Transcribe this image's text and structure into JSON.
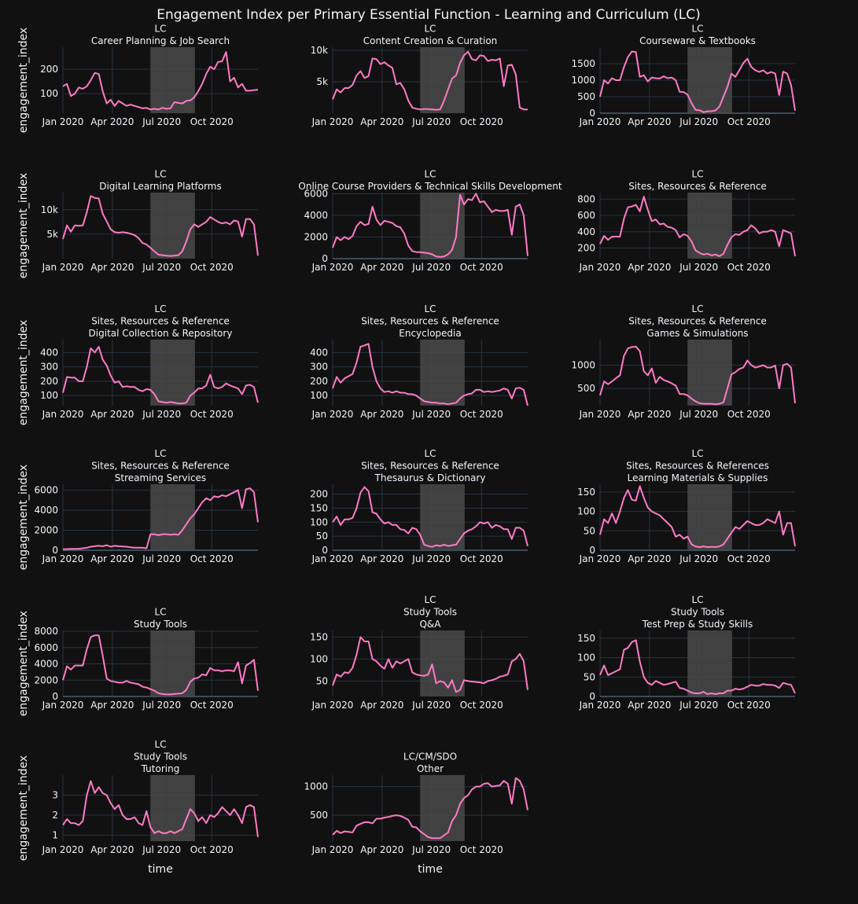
{
  "title": "Engagement Index per Primary Essential Function - Learning and Curriculum (LC)",
  "xaxis_label": "time",
  "yaxis_label": "engagement_index",
  "x_ticks": [
    "Jan 2020",
    "Apr 2020",
    "Jul 2020",
    "Oct 2020"
  ],
  "colors": {
    "background": "#111111",
    "line": "#ff7ac6",
    "grid": "#283442",
    "zeroline": "#3b4b5c",
    "shade": "#4a4a4a",
    "text": "#f2f5fa"
  },
  "shaded_period": {
    "start": "2020-06-10",
    "end": "2020-08-31"
  },
  "chart_data": [
    {
      "type": "line",
      "row": 1,
      "col": 1,
      "subtitle": [
        "LC",
        "Career Planning & Job Search"
      ],
      "ylim": [
        20,
        290
      ],
      "yticks": [
        {
          "v": 100,
          "t": "100"
        },
        {
          "v": 200,
          "t": "200"
        }
      ],
      "values": [
        130,
        140,
        90,
        100,
        125,
        120,
        130,
        155,
        185,
        180,
        110,
        60,
        75,
        50,
        70,
        60,
        50,
        55,
        50,
        45,
        40,
        42,
        35,
        38,
        35,
        42,
        38,
        40,
        65,
        62,
        60,
        70,
        72,
        85,
        110,
        140,
        180,
        210,
        200,
        230,
        232,
        270,
        150,
        165,
        125,
        140,
        112,
        112,
        114,
        116
      ]
    },
    {
      "type": "line",
      "row": 1,
      "col": 2,
      "subtitle": [
        "LC",
        "Content Creation & Curation"
      ],
      "ylim": [
        0,
        10500
      ],
      "yticks": [
        {
          "v": 5000,
          "t": "5k"
        },
        {
          "v": 10000,
          "t": "10k"
        }
      ],
      "values": [
        2200,
        3800,
        3300,
        4000,
        4000,
        4500,
        6000,
        6700,
        5600,
        5900,
        8700,
        8600,
        7800,
        8100,
        7600,
        7200,
        4600,
        4800,
        3800,
        2000,
        900,
        700,
        600,
        650,
        650,
        600,
        550,
        600,
        2000,
        3800,
        5500,
        6000,
        8000,
        9200,
        9800,
        8600,
        8400,
        9200,
        9100,
        8300,
        8500,
        8400,
        8700,
        4300,
        7600,
        7700,
        6200,
        900,
        600,
        600
      ]
    },
    {
      "type": "line",
      "row": 1,
      "col": 3,
      "subtitle": [
        "LC",
        "Courseware & Textbooks"
      ],
      "ylim": [
        0,
        2000
      ],
      "yticks": [
        {
          "v": 0,
          "t": "0"
        },
        {
          "v": 500,
          "t": "500"
        },
        {
          "v": 1000,
          "t": "1000"
        },
        {
          "v": 1500,
          "t": "1500"
        }
      ],
      "values": [
        500,
        1000,
        900,
        1060,
        1000,
        1000,
        1400,
        1700,
        1870,
        1850,
        1100,
        1150,
        960,
        1080,
        1060,
        1050,
        1120,
        1060,
        1080,
        1000,
        650,
        640,
        560,
        300,
        100,
        90,
        30,
        60,
        60,
        80,
        200,
        500,
        800,
        1200,
        1100,
        1300,
        1520,
        1650,
        1400,
        1300,
        1250,
        1300,
        1200,
        1250,
        1200,
        550,
        1260,
        1200,
        850,
        80
      ]
    },
    {
      "type": "line",
      "row": 2,
      "col": 1,
      "subtitle": [
        "LC",
        "Digital Learning Platforms"
      ],
      "ylim": [
        0,
        13500
      ],
      "yticks": [
        {
          "v": 5000,
          "t": "5k"
        },
        {
          "v": 10000,
          "t": "10k"
        }
      ],
      "values": [
        4000,
        6800,
        5500,
        6800,
        6700,
        6800,
        9500,
        12800,
        12400,
        12300,
        9200,
        7600,
        6000,
        5400,
        5300,
        5400,
        5300,
        5100,
        4800,
        4200,
        3200,
        2900,
        2200,
        1500,
        800,
        700,
        600,
        550,
        600,
        700,
        1500,
        3500,
        6000,
        7000,
        6500,
        7000,
        7500,
        8500,
        8000,
        7500,
        7200,
        7400,
        7000,
        7800,
        7600,
        4500,
        8100,
        8100,
        7000,
        600
      ]
    },
    {
      "type": "line",
      "row": 2,
      "col": 2,
      "subtitle": [
        "LC",
        "Online Course Providers & Technical Skills Development"
      ],
      "ylim": [
        0,
        6100
      ],
      "yticks": [
        {
          "v": 0,
          "t": "0"
        },
        {
          "v": 2000,
          "t": "2000"
        },
        {
          "v": 4000,
          "t": "4000"
        },
        {
          "v": 6000,
          "t": "6000"
        }
      ],
      "values": [
        1000,
        2000,
        1700,
        2000,
        1800,
        2100,
        3000,
        3400,
        3100,
        3200,
        4800,
        3600,
        3100,
        3500,
        3400,
        3300,
        3000,
        2900,
        2300,
        1200,
        700,
        600,
        600,
        550,
        500,
        400,
        200,
        150,
        200,
        400,
        800,
        2000,
        5900,
        5000,
        5500,
        5400,
        6000,
        5200,
        5300,
        4800,
        4300,
        4500,
        4400,
        4400,
        4500,
        2200,
        4800,
        5000,
        4000,
        250
      ]
    },
    {
      "type": "line",
      "row": 2,
      "col": 3,
      "subtitle": [
        "LC",
        "Sites, Resources & Reference"
      ],
      "ylim": [
        70,
        880
      ],
      "yticks": [
        {
          "v": 200,
          "t": "200"
        },
        {
          "v": 400,
          "t": "400"
        },
        {
          "v": 600,
          "t": "600"
        },
        {
          "v": 800,
          "t": "800"
        }
      ],
      "values": [
        250,
        350,
        300,
        340,
        340,
        340,
        560,
        700,
        710,
        730,
        650,
        830,
        670,
        530,
        550,
        490,
        500,
        460,
        450,
        420,
        330,
        370,
        350,
        280,
        170,
        140,
        120,
        130,
        110,
        120,
        100,
        130,
        240,
        330,
        370,
        360,
        400,
        420,
        480,
        440,
        380,
        400,
        400,
        420,
        400,
        220,
        420,
        400,
        380,
        100
      ]
    },
    {
      "type": "line",
      "row": 3,
      "col": 1,
      "subtitle": [
        "LC",
        "Sites, Resources & Reference",
        "Digital Collection & Repository"
      ],
      "ylim": [
        30,
        490
      ],
      "yticks": [
        {
          "v": 100,
          "t": "100"
        },
        {
          "v": 200,
          "t": "200"
        },
        {
          "v": 300,
          "t": "300"
        },
        {
          "v": 400,
          "t": "400"
        }
      ],
      "values": [
        120,
        230,
        225,
        225,
        200,
        200,
        300,
        430,
        400,
        440,
        350,
        310,
        240,
        190,
        200,
        160,
        165,
        160,
        160,
        140,
        130,
        145,
        140,
        110,
        60,
        55,
        50,
        55,
        50,
        45,
        45,
        50,
        100,
        120,
        150,
        150,
        170,
        245,
        160,
        150,
        160,
        185,
        170,
        160,
        150,
        110,
        170,
        175,
        160,
        50
      ]
    },
    {
      "type": "line",
      "row": 3,
      "col": 2,
      "subtitle": [
        "LC",
        "Sites, Resources & Reference",
        "Encyclopedia"
      ],
      "ylim": [
        30,
        490
      ],
      "yticks": [
        {
          "v": 100,
          "t": "100"
        },
        {
          "v": 200,
          "t": "200"
        },
        {
          "v": 300,
          "t": "300"
        },
        {
          "v": 400,
          "t": "400"
        }
      ],
      "values": [
        150,
        230,
        190,
        220,
        235,
        250,
        330,
        440,
        450,
        460,
        300,
        200,
        150,
        125,
        130,
        120,
        130,
        120,
        120,
        110,
        110,
        100,
        80,
        60,
        55,
        50,
        50,
        45,
        45,
        40,
        45,
        50,
        80,
        100,
        110,
        115,
        140,
        140,
        125,
        130,
        125,
        130,
        135,
        150,
        140,
        80,
        150,
        155,
        140,
        30
      ]
    },
    {
      "type": "line",
      "row": 3,
      "col": 3,
      "subtitle": [
        "LC",
        "Sites, Resources & Reference",
        "Games & Simulations"
      ],
      "ylim": [
        130,
        1550
      ],
      "yticks": [
        {
          "v": 500,
          "t": "500"
        },
        {
          "v": 1000,
          "t": "1000"
        }
      ],
      "values": [
        350,
        650,
        590,
        650,
        720,
        780,
        1200,
        1360,
        1390,
        1400,
        1300,
        870,
        780,
        930,
        620,
        750,
        680,
        650,
        610,
        560,
        380,
        380,
        350,
        280,
        220,
        180,
        170,
        170,
        170,
        160,
        170,
        200,
        500,
        800,
        850,
        920,
        950,
        1100,
        1000,
        950,
        970,
        1000,
        950,
        950,
        990,
        500,
        1000,
        1030,
        950,
        180
      ]
    },
    {
      "type": "line",
      "row": 4,
      "col": 1,
      "subtitle": [
        "LC",
        "Sites, Resources & Reference",
        "Streaming Services"
      ],
      "ylim": [
        0,
        6600
      ],
      "yticks": [
        {
          "v": 0,
          "t": "0"
        },
        {
          "v": 2000,
          "t": "2000"
        },
        {
          "v": 4000,
          "t": "4000"
        },
        {
          "v": 6000,
          "t": "6000"
        }
      ],
      "values": [
        100,
        120,
        130,
        130,
        150,
        200,
        250,
        350,
        400,
        450,
        400,
        500,
        350,
        450,
        400,
        380,
        350,
        300,
        250,
        250,
        250,
        200,
        1600,
        1600,
        1500,
        1600,
        1600,
        1550,
        1600,
        1550,
        2000,
        2600,
        3200,
        3600,
        4200,
        4800,
        5200,
        5000,
        5400,
        5300,
        5500,
        5400,
        5600,
        5800,
        6000,
        4200,
        6100,
        6200,
        5800,
        2800
      ]
    },
    {
      "type": "line",
      "row": 4,
      "col": 2,
      "subtitle": [
        "LC",
        "Sites, Resources & Reference",
        "Thesaurus & Dictionary"
      ],
      "ylim": [
        0,
        235
      ],
      "yticks": [
        {
          "v": 0,
          "t": "0"
        },
        {
          "v": 50,
          "t": "50"
        },
        {
          "v": 100,
          "t": "100"
        },
        {
          "v": 150,
          "t": "150"
        },
        {
          "v": 200,
          "t": "200"
        }
      ],
      "values": [
        100,
        120,
        90,
        110,
        110,
        115,
        150,
        205,
        225,
        210,
        135,
        130,
        110,
        95,
        100,
        90,
        90,
        75,
        72,
        60,
        80,
        75,
        55,
        20,
        15,
        12,
        18,
        15,
        20,
        15,
        18,
        20,
        40,
        60,
        70,
        75,
        85,
        100,
        95,
        100,
        80,
        90,
        85,
        75,
        75,
        40,
        80,
        80,
        70,
        15
      ]
    },
    {
      "type": "line",
      "row": 4,
      "col": 3,
      "subtitle": [
        "LC",
        "Sites, Resources & References",
        "Learning Materials & Supplies"
      ],
      "ylim": [
        0,
        170
      ],
      "yticks": [
        {
          "v": 0,
          "t": "0"
        },
        {
          "v": 50,
          "t": "50"
        },
        {
          "v": 100,
          "t": "100"
        },
        {
          "v": 150,
          "t": "150"
        }
      ],
      "values": [
        40,
        80,
        70,
        95,
        70,
        100,
        135,
        155,
        130,
        128,
        165,
        135,
        110,
        100,
        95,
        90,
        80,
        70,
        60,
        35,
        40,
        30,
        35,
        15,
        10,
        8,
        10,
        8,
        9,
        8,
        10,
        15,
        30,
        45,
        60,
        55,
        65,
        75,
        70,
        65,
        65,
        70,
        80,
        75,
        70,
        100,
        40,
        70,
        70,
        10
      ]
    },
    {
      "type": "line",
      "row": 5,
      "col": 1,
      "subtitle": [
        "LC",
        "Study Tools"
      ],
      "ylim": [
        0,
        8100
      ],
      "yticks": [
        {
          "v": 0,
          "t": "0"
        },
        {
          "v": 2000,
          "t": "2000"
        },
        {
          "v": 4000,
          "t": "4000"
        },
        {
          "v": 6000,
          "t": "6000"
        },
        {
          "v": 8000,
          "t": "8000"
        }
      ],
      "values": [
        2000,
        3700,
        3300,
        3800,
        3800,
        3800,
        5800,
        7300,
        7500,
        7500,
        5000,
        2200,
        1900,
        1800,
        1700,
        1700,
        1900,
        1700,
        1600,
        1500,
        1200,
        1100,
        900,
        700,
        400,
        300,
        250,
        250,
        300,
        350,
        400,
        800,
        1800,
        2200,
        2300,
        2700,
        2600,
        3500,
        3200,
        3200,
        3100,
        3200,
        3200,
        3100,
        4200,
        1600,
        3800,
        4100,
        4500,
        700
      ]
    },
    {
      "type": "line",
      "row": 5,
      "col": 2,
      "subtitle": [
        "LC",
        "Study Tools",
        "Q&A"
      ],
      "ylim": [
        15,
        165
      ],
      "yticks": [
        {
          "v": 50,
          "t": "50"
        },
        {
          "v": 100,
          "t": "100"
        },
        {
          "v": 150,
          "t": "150"
        }
      ],
      "values": [
        40,
        65,
        60,
        70,
        68,
        80,
        110,
        150,
        140,
        140,
        100,
        95,
        85,
        78,
        100,
        80,
        95,
        90,
        95,
        100,
        70,
        65,
        63,
        62,
        65,
        88,
        45,
        50,
        47,
        35,
        52,
        25,
        30,
        52,
        50,
        49,
        48,
        47,
        45,
        50,
        52,
        55,
        60,
        62,
        65,
        95,
        100,
        112,
        95,
        30
      ]
    },
    {
      "type": "line",
      "row": 5,
      "col": 3,
      "subtitle": [
        "LC",
        "Study Tools",
        "Test Prep & Study Skills"
      ],
      "ylim": [
        0,
        170
      ],
      "yticks": [
        {
          "v": 0,
          "t": "0"
        },
        {
          "v": 50,
          "t": "50"
        },
        {
          "v": 100,
          "t": "100"
        },
        {
          "v": 150,
          "t": "150"
        }
      ],
      "values": [
        55,
        80,
        55,
        60,
        65,
        70,
        120,
        125,
        140,
        145,
        90,
        50,
        35,
        30,
        40,
        35,
        30,
        32,
        35,
        38,
        22,
        20,
        15,
        10,
        8,
        8,
        12,
        6,
        8,
        6,
        8,
        8,
        15,
        15,
        20,
        18,
        20,
        25,
        30,
        28,
        28,
        32,
        30,
        30,
        28,
        22,
        35,
        32,
        30,
        8
      ]
    },
    {
      "type": "line",
      "row": 6,
      "col": 1,
      "subtitle": [
        "LC",
        "Study Tools",
        "Tutoring"
      ],
      "ylim": [
        0.7,
        4.0
      ],
      "yticks": [
        {
          "v": 1,
          "t": "1"
        },
        {
          "v": 2,
          "t": "2"
        },
        {
          "v": 3,
          "t": "3"
        }
      ],
      "values": [
        1.5,
        1.8,
        1.6,
        1.6,
        1.5,
        1.7,
        3.0,
        3.7,
        3.1,
        3.4,
        3.1,
        3.0,
        2.6,
        2.3,
        2.5,
        2.0,
        1.8,
        1.8,
        1.9,
        1.6,
        1.5,
        2.2,
        1.4,
        1.1,
        1.2,
        1.1,
        1.1,
        1.2,
        1.1,
        1.2,
        1.3,
        1.8,
        2.3,
        2.1,
        1.7,
        1.9,
        1.6,
        2.0,
        1.9,
        2.1,
        2.4,
        2.2,
        2.0,
        2.3,
        2.0,
        1.6,
        2.4,
        2.5,
        2.4,
        0.9
      ]
    },
    {
      "type": "line",
      "row": 6,
      "col": 2,
      "subtitle": [
        "LC/CM/SDO",
        "Other"
      ],
      "ylim": [
        50,
        1200
      ],
      "yticks": [
        {
          "v": 500,
          "t": "500"
        },
        {
          "v": 1000,
          "t": "1000"
        }
      ],
      "values": [
        160,
        230,
        190,
        220,
        210,
        200,
        320,
        350,
        380,
        380,
        360,
        440,
        440,
        460,
        470,
        490,
        500,
        490,
        460,
        420,
        300,
        290,
        220,
        170,
        120,
        100,
        100,
        100,
        150,
        200,
        400,
        500,
        700,
        800,
        850,
        950,
        1000,
        1000,
        1050,
        1060,
        1000,
        1010,
        1020,
        1100,
        1050,
        700,
        1150,
        1100,
        950,
        590
      ]
    }
  ]
}
